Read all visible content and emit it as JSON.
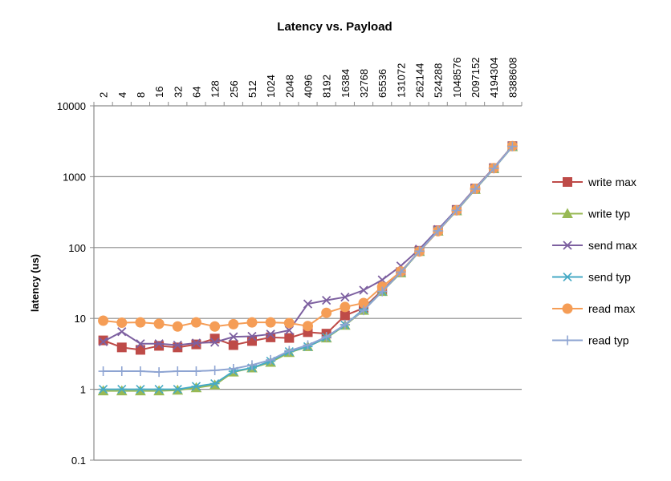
{
  "chart_data": {
    "type": "line",
    "title": "Latency vs. Payload",
    "xlabel": "",
    "ylabel": "latency (us)",
    "y_scale": "log",
    "ylim": [
      0.1,
      10000
    ],
    "y_ticks": [
      "0.1",
      "1",
      "10",
      "100",
      "1000",
      "10000"
    ],
    "y_tick_values": [
      0.1,
      1,
      10,
      100,
      1000,
      10000
    ],
    "grid": "horizontal",
    "x_axis_position": "top",
    "legend_position": "right",
    "categories": [
      "2",
      "4",
      "8",
      "16",
      "32",
      "64",
      "128",
      "256",
      "512",
      "1024",
      "2048",
      "4096",
      "8192",
      "16384",
      "32768",
      "65536",
      "131072",
      "262144",
      "524288",
      "1048576",
      "2097152",
      "4194304",
      "8388608"
    ],
    "series": [
      {
        "name": "write max",
        "color": "#be4b48",
        "marker": "square",
        "values": [
          4.9,
          3.9,
          3.6,
          4.1,
          3.9,
          4.3,
          5.2,
          4.2,
          4.8,
          5.4,
          5.3,
          6.4,
          6.1,
          11,
          14,
          25,
          45,
          90,
          175,
          340,
          680,
          1320,
          2700
        ]
      },
      {
        "name": "write typ",
        "color": "#98b954",
        "marker": "triangle",
        "values": [
          0.95,
          0.95,
          0.95,
          0.95,
          0.97,
          1.05,
          1.15,
          1.75,
          2.0,
          2.4,
          3.3,
          4.0,
          5.3,
          8.0,
          13,
          24,
          44,
          88,
          170,
          330,
          660,
          1300,
          2650
        ]
      },
      {
        "name": "send max",
        "color": "#7d60a0",
        "marker": "x",
        "values": [
          4.7,
          6.5,
          4.4,
          4.4,
          4.2,
          4.5,
          4.6,
          5.5,
          5.6,
          6.0,
          6.8,
          16,
          18,
          20,
          25,
          35,
          55,
          95,
          180,
          345,
          690,
          1340,
          2720
        ]
      },
      {
        "name": "send typ",
        "color": "#46aac5",
        "marker": "star",
        "values": [
          1.0,
          1.0,
          1.0,
          1.0,
          1.0,
          1.1,
          1.2,
          1.8,
          2.0,
          2.5,
          3.4,
          4.0,
          5.4,
          8.1,
          13.5,
          24,
          45,
          89,
          172,
          335,
          670,
          1310,
          2680
        ]
      },
      {
        "name": "read max",
        "color": "#f59d56",
        "marker": "circle",
        "values": [
          9.3,
          8.7,
          8.8,
          8.4,
          7.7,
          8.8,
          7.7,
          8.3,
          8.8,
          8.8,
          8.6,
          7.8,
          12,
          14.5,
          16.5,
          28,
          46,
          88,
          170,
          335,
          675,
          1320,
          2700
        ]
      },
      {
        "name": "read typ",
        "color": "#8ea4d2",
        "marker": "plus",
        "values": [
          1.8,
          1.8,
          1.8,
          1.75,
          1.8,
          1.8,
          1.85,
          1.95,
          2.2,
          2.6,
          3.5,
          4.2,
          5.5,
          8.2,
          13,
          24,
          45,
          89,
          172,
          335,
          670,
          1310,
          2680
        ]
      }
    ]
  }
}
